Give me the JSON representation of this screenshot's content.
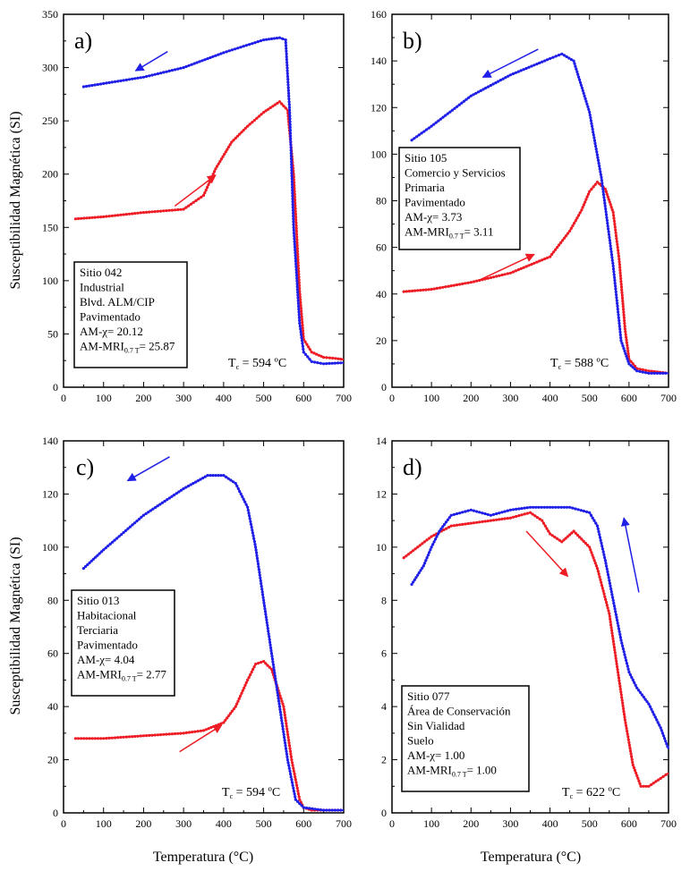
{
  "figure": {
    "y_axis_title": "Susceptibilidad Magnética (SI)",
    "x_axis_title": "Temperatura (°C)"
  },
  "colors": {
    "heating": "#ee1c24",
    "cooling": "#1f1fe8",
    "axis": "#000000"
  },
  "chart_data": [
    {
      "type": "line",
      "panel": "a)",
      "xlim": [
        0,
        700
      ],
      "ylim": [
        0,
        350
      ],
      "xticks": [
        0,
        100,
        200,
        300,
        400,
        500,
        600,
        700
      ],
      "yticks": [
        0,
        50,
        100,
        150,
        200,
        250,
        300,
        350
      ],
      "xlabel": "",
      "ylabel": "Susceptibilidad Magnética (SI)",
      "info": [
        "Sitio 042",
        "Industrial",
        "Blvd. ALM/CIP",
        "Pavimentado",
        "AM-χ= 20.12"
      ],
      "am_mri": {
        "prefix": "AM-MRI",
        "sub": "0.7 T",
        "value": "= 25.87"
      },
      "tc": {
        "symbol": "T",
        "sub": "c",
        "text": " = 594 ºC"
      },
      "series": [
        {
          "name": "heating",
          "x": [
            30,
            100,
            200,
            300,
            350,
            380,
            420,
            460,
            500,
            540,
            560,
            575,
            590,
            600,
            620,
            650,
            680,
            700
          ],
          "y": [
            158,
            160,
            164,
            167,
            180,
            205,
            230,
            245,
            258,
            268,
            260,
            200,
            90,
            45,
            33,
            28,
            27,
            26
          ]
        },
        {
          "name": "cooling",
          "x": [
            50,
            100,
            200,
            300,
            400,
            450,
            500,
            540,
            555,
            565,
            575,
            590,
            600,
            620,
            650,
            700
          ],
          "y": [
            282,
            285,
            291,
            300,
            314,
            320,
            326,
            328,
            326,
            260,
            150,
            60,
            33,
            24,
            22,
            23
          ]
        }
      ],
      "arrows": [
        {
          "series": "cooling",
          "from": [
            260,
            315
          ],
          "to": [
            180,
            297
          ]
        },
        {
          "series": "heating",
          "from": [
            278,
            170
          ],
          "to": [
            380,
            199
          ]
        }
      ]
    },
    {
      "type": "line",
      "panel": "b)",
      "xlim": [
        0,
        700
      ],
      "ylim": [
        0,
        160
      ],
      "xticks": [
        0,
        100,
        200,
        300,
        400,
        500,
        600,
        700
      ],
      "yticks": [
        0,
        20,
        40,
        60,
        80,
        100,
        120,
        140,
        160
      ],
      "xlabel": "",
      "ylabel": "",
      "info": [
        "Sitio 105",
        "Comercio y Servicios",
        "Primaria",
        "Pavimentado",
        "AM-χ= 3.73"
      ],
      "am_mri": {
        "prefix": "AM-MRI",
        "sub": "0.7 T",
        "value": "= 3.11"
      },
      "tc": {
        "symbol": "T",
        "sub": "c",
        "text": " = 588 ºC"
      },
      "series": [
        {
          "name": "heating",
          "x": [
            30,
            100,
            200,
            300,
            400,
            450,
            480,
            500,
            520,
            540,
            560,
            575,
            590,
            600,
            620,
            650,
            700
          ],
          "y": [
            41,
            42,
            45,
            49,
            56,
            67,
            76,
            84,
            88,
            85,
            75,
            55,
            25,
            12,
            8,
            7,
            6
          ]
        },
        {
          "name": "cooling",
          "x": [
            50,
            100,
            200,
            300,
            400,
            430,
            460,
            500,
            530,
            560,
            580,
            600,
            620,
            650,
            700
          ],
          "y": [
            106,
            112,
            125,
            134,
            141,
            143,
            140,
            118,
            90,
            52,
            20,
            10,
            7,
            6,
            6
          ]
        }
      ],
      "arrows": [
        {
          "series": "cooling",
          "from": [
            370,
            145
          ],
          "to": [
            230,
            133
          ]
        },
        {
          "series": "heating",
          "from": [
            222,
            46
          ],
          "to": [
            360,
            57
          ]
        }
      ]
    },
    {
      "type": "line",
      "panel": "c)",
      "xlim": [
        0,
        700
      ],
      "ylim": [
        0,
        140
      ],
      "xticks": [
        0,
        100,
        200,
        300,
        400,
        500,
        600,
        700
      ],
      "yticks": [
        0,
        20,
        40,
        60,
        80,
        100,
        120,
        140
      ],
      "xlabel": "Temperatura (°C)",
      "ylabel": "Susceptibilidad Magnética (SI)",
      "info": [
        "Sitio 013",
        "Habitacional",
        "Terciaria",
        "Pavimentado",
        "AM-χ= 4.04"
      ],
      "am_mri": {
        "prefix": "AM-MRI",
        "sub": "0.7 T",
        "value": "= 2.77"
      },
      "tc": {
        "symbol": "T",
        "sub": "c",
        "text": " = 594 ºC"
      },
      "series": [
        {
          "name": "heating",
          "x": [
            30,
            100,
            200,
            300,
            350,
            400,
            430,
            460,
            480,
            500,
            520,
            550,
            570,
            590,
            600,
            620,
            650,
            700
          ],
          "y": [
            28,
            28,
            29,
            30,
            31,
            34,
            40,
            50,
            56,
            57,
            54,
            40,
            20,
            5,
            2,
            1,
            1,
            1
          ]
        },
        {
          "name": "cooling",
          "x": [
            50,
            100,
            200,
            300,
            360,
            400,
            430,
            460,
            480,
            500,
            520,
            540,
            560,
            580,
            600,
            650,
            700
          ],
          "y": [
            92,
            99,
            112,
            122,
            127,
            127,
            124,
            115,
            100,
            80,
            60,
            40,
            20,
            5,
            2,
            1,
            1
          ]
        }
      ],
      "arrows": [
        {
          "series": "cooling",
          "from": [
            265,
            134
          ],
          "to": [
            160,
            125
          ]
        },
        {
          "series": "heating",
          "from": [
            290,
            23
          ],
          "to": [
            395,
            33
          ]
        }
      ]
    },
    {
      "type": "line",
      "panel": "d)",
      "xlim": [
        0,
        700
      ],
      "ylim": [
        0,
        14
      ],
      "xticks": [
        0,
        100,
        200,
        300,
        400,
        500,
        600,
        700
      ],
      "yticks": [
        0,
        2,
        4,
        6,
        8,
        10,
        12,
        14
      ],
      "xlabel": "Temperatura (°C)",
      "ylabel": "",
      "info": [
        "Sitio 077",
        "Área de Conservación",
        "Sin Vialidad",
        "Suelo",
        "AM-χ= 1.00"
      ],
      "am_mri": {
        "prefix": "AM-MRI",
        "sub": "0.7 T",
        "value": "= 1.00"
      },
      "tc": {
        "symbol": "T",
        "sub": "c",
        "text": " = 622 ºC"
      },
      "series": [
        {
          "name": "heating",
          "x": [
            30,
            100,
            150,
            200,
            250,
            300,
            350,
            380,
            400,
            430,
            460,
            500,
            520,
            550,
            570,
            590,
            610,
            630,
            650,
            680,
            700
          ],
          "y": [
            9.6,
            10.4,
            10.8,
            10.9,
            11.0,
            11.1,
            11.3,
            11.0,
            10.5,
            10.2,
            10.6,
            10.0,
            9.2,
            7.5,
            5.5,
            3.5,
            1.8,
            1.0,
            1.0,
            1.3,
            1.5
          ]
        },
        {
          "name": "cooling",
          "x": [
            50,
            80,
            100,
            120,
            150,
            200,
            250,
            300,
            350,
            400,
            450,
            500,
            520,
            540,
            560,
            580,
            600,
            620,
            650,
            680,
            700
          ],
          "y": [
            8.6,
            9.3,
            10.0,
            10.6,
            11.2,
            11.4,
            11.2,
            11.4,
            11.5,
            11.5,
            11.5,
            11.3,
            10.8,
            9.5,
            8.0,
            6.5,
            5.3,
            4.7,
            4.1,
            3.2,
            2.4
          ]
        }
      ],
      "arrows": [
        {
          "series": "cooling",
          "from": [
            625,
            8.3
          ],
          "to": [
            587,
            11.1
          ]
        },
        {
          "series": "heating",
          "from": [
            340,
            10.6
          ],
          "to": [
            445,
            8.9
          ]
        }
      ]
    }
  ]
}
